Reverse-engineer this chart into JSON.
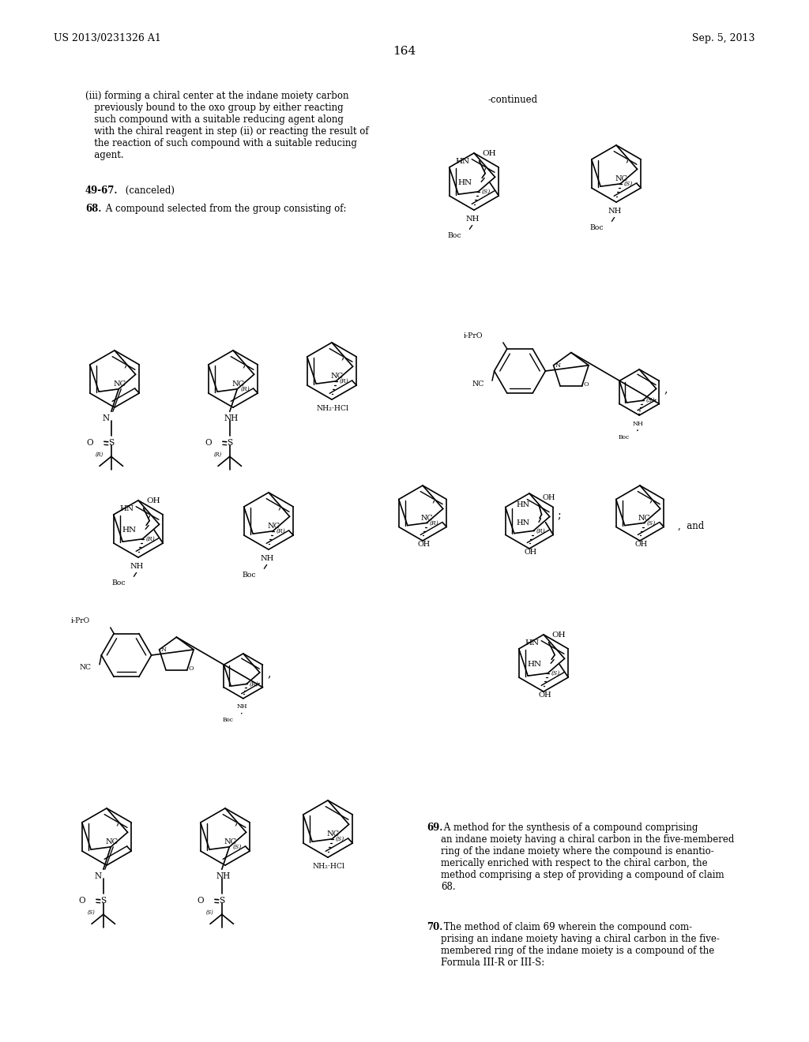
{
  "page_number": "164",
  "header_left": "US 2013/0231326 A1",
  "header_right": "Sep. 5, 2013",
  "background_color": "#ffffff",
  "text_color": "#000000",
  "body_text_1": "(iii) forming a chiral center at the indane moiety carbon\n   previously bound to the oxo group by either reacting\n   such compound with a suitable reducing agent along\n   with the chiral reagent in step (ii) or reacting the result of\n   the reaction of such compound with a suitable reducing\n   agent.",
  "body_text_2_bold": "49-67.",
  "body_text_2_rest": " (canceled)",
  "body_text_3": "68. A compound selected from the group consisting of:",
  "continued": "-continued",
  "claim_69_bold": "69.",
  "claim_69_rest": " A method for the synthesis of a compound comprising\nan indane moiety having a chiral carbon in the five-membered\nring of the indane moiety where the compound is enantio-\nmerically enriched with respect to the chiral carbon, the\nmethod comprising a step of providing a compound of claim\n68.",
  "claim_70_bold": "70.",
  "claim_70_rest": " The method of claim 69 wherein the compound com-\nprising an indane moiety having a chiral carbon in the five-\nmembered ring of the indane moiety is a compound of the\nFormula III-R or III-S:"
}
